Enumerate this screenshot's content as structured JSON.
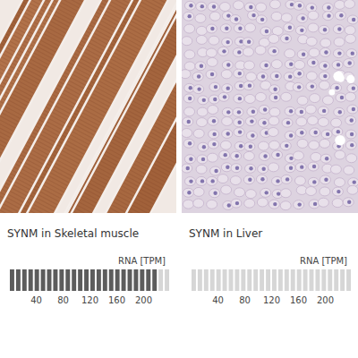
{
  "chart_data": [
    {
      "type": "bar",
      "orientation": "horizontal",
      "title": "SYNM in Skeletal muscle",
      "xlabel": "RNA [TPM]",
      "values": [
        218
      ],
      "color": "#5c5c5c",
      "xlim": [
        0,
        240
      ],
      "xticks": [
        40,
        80,
        120,
        160,
        200
      ],
      "grid": false,
      "data_labels": false,
      "tick_labels": "x"
    },
    {
      "type": "bar",
      "orientation": "horizontal",
      "title": "SYNM in Liver",
      "xlabel": "RNA [TPM]",
      "values": [
        1
      ],
      "color": "#5c5c5c",
      "xlim": [
        0,
        240
      ],
      "xticks": [
        40,
        80,
        120,
        160,
        200
      ],
      "grid": false,
      "data_labels": false,
      "tick_labels": "x"
    }
  ]
}
